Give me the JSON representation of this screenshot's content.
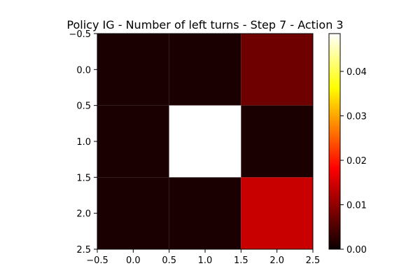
{
  "chart_data": {
    "type": "heatmap",
    "title": "Policy IG - Number of left turns - Step 7 - Action 3",
    "xlabel": "",
    "ylabel": "",
    "xlim": [
      -0.5,
      2.5
    ],
    "ylim": [
      2.5,
      -0.5
    ],
    "x_ticks": [
      "−0.5",
      "0.0",
      "0.5",
      "1.0",
      "1.5",
      "2.0",
      "2.5"
    ],
    "y_ticks": [
      "−0.5",
      "0.0",
      "0.5",
      "1.0",
      "1.5",
      "2.0",
      "2.5"
    ],
    "colormap": "hot",
    "colorbar": {
      "min": 0.0,
      "max": 0.0485,
      "ticks": [
        "0.00",
        "0.01",
        "0.02",
        "0.03",
        "0.04"
      ]
    },
    "grid": false,
    "values": [
      [
        0.0,
        0.0,
        0.0065
      ],
      [
        0.0,
        0.0485,
        0.0
      ],
      [
        0.0,
        0.0,
        0.0135
      ]
    ]
  }
}
